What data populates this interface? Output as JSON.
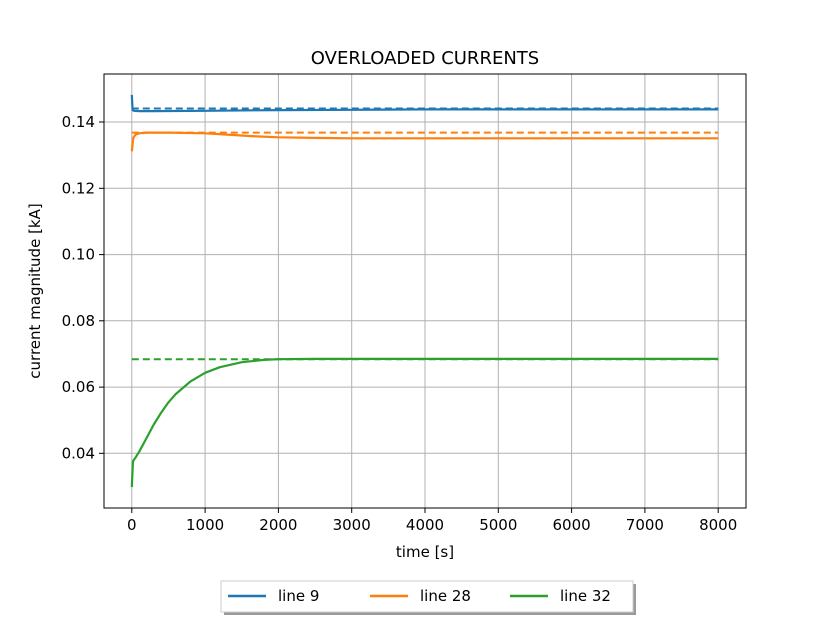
{
  "chart_data": {
    "type": "line",
    "title": "OVERLOADED CURRENTS",
    "xlabel": "time [s]",
    "ylabel": "current magnitude [kA]",
    "xlim": [
      -380,
      8380
    ],
    "ylim": [
      0.0235,
      0.1545
    ],
    "xticks": [
      0,
      1000,
      2000,
      3000,
      4000,
      5000,
      6000,
      7000,
      8000
    ],
    "xtick_labels": [
      "0",
      "1000",
      "2000",
      "3000",
      "4000",
      "5000",
      "6000",
      "7000",
      "8000"
    ],
    "yticks": [
      0.04,
      0.06,
      0.08,
      0.1,
      0.12,
      0.14
    ],
    "ytick_labels": [
      "0.04",
      "0.06",
      "0.08",
      "0.10",
      "0.12",
      "0.14"
    ],
    "grid": true,
    "legend_position": "below-center",
    "series": [
      {
        "name": "line 9",
        "color": "#1f77b4",
        "x": [
          0,
          10,
          30,
          100,
          300,
          1000,
          2000,
          3000,
          4000,
          5000,
          6000,
          7000,
          8000
        ],
        "y": [
          0.1482,
          0.1436,
          0.1434,
          0.1433,
          0.1433,
          0.1434,
          0.1436,
          0.1437,
          0.1438,
          0.1438,
          0.1438,
          0.1438,
          0.1438
        ],
        "limit": 0.1441
      },
      {
        "name": "line 28",
        "color": "#ff7f0e",
        "x": [
          0,
          20,
          50,
          100,
          200,
          500,
          1000,
          1300,
          1600,
          2000,
          2500,
          3000,
          4000,
          5000,
          6000,
          7000,
          8000
        ],
        "y": [
          0.1312,
          0.1352,
          0.1362,
          0.1366,
          0.1368,
          0.1368,
          0.1366,
          0.1362,
          0.1358,
          0.1354,
          0.1352,
          0.1351,
          0.1351,
          0.1351,
          0.1351,
          0.1351,
          0.1351
        ],
        "limit": 0.1368
      },
      {
        "name": "line 32",
        "color": "#2ca02c",
        "x": [
          0,
          15,
          20,
          50,
          100,
          200,
          300,
          400,
          500,
          600,
          800,
          1000,
          1200,
          1500,
          1800,
          2000,
          2500,
          3000,
          4000,
          5000,
          6000,
          7000,
          8000
        ],
        "y": [
          0.0298,
          0.0372,
          0.0378,
          0.0387,
          0.0405,
          0.0446,
          0.0487,
          0.0523,
          0.0554,
          0.0579,
          0.0617,
          0.0643,
          0.066,
          0.0675,
          0.0682,
          0.0684,
          0.0685,
          0.0685,
          0.0685,
          0.0685,
          0.0685,
          0.0685,
          0.0685
        ],
        "limit": 0.0684
      }
    ]
  }
}
